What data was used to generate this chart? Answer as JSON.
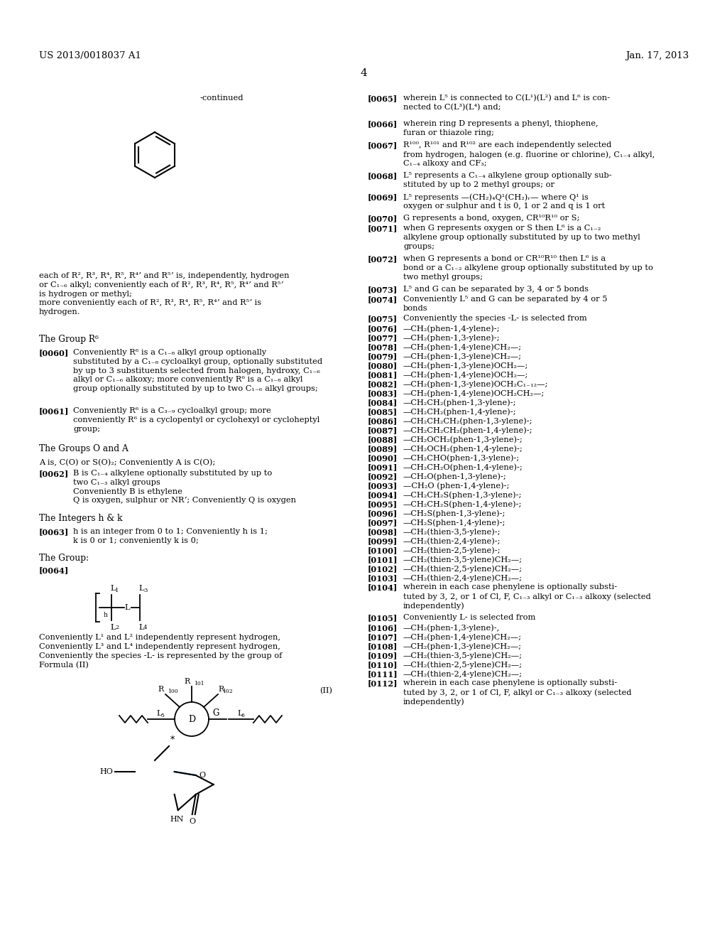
{
  "bg_color": "#ffffff",
  "header_left": "US 2013/0018037 A1",
  "header_right": "Jan. 17, 2013",
  "page_num": "4",
  "continued_label": "-continued"
}
